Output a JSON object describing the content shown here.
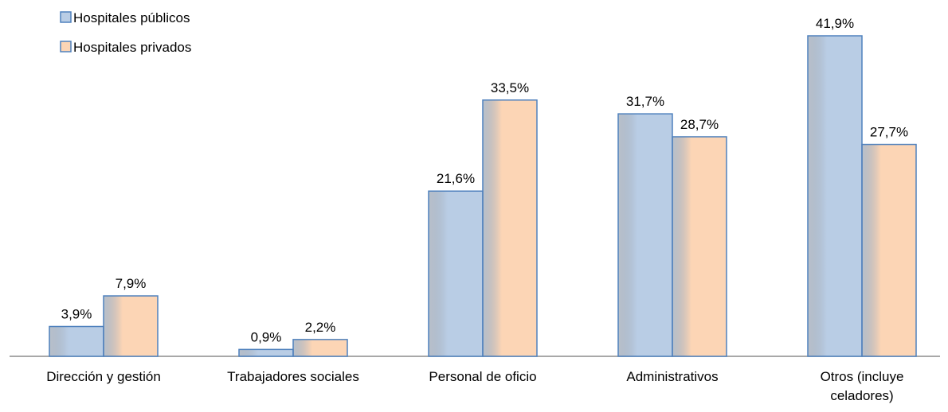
{
  "chart_data": {
    "type": "bar",
    "categories": [
      "Dirección y gestión",
      "Trabajadores sociales",
      "Personal de oficio",
      "Administrativos",
      "Otros (incluye celadores)"
    ],
    "series": [
      {
        "name": "Hospitales públicos",
        "color": "#b9cde5",
        "values": [
          3.9,
          0.9,
          21.6,
          31.7,
          41.9
        ],
        "value_labels": [
          "3,9%",
          "0,9%",
          "21,6%",
          "31,7%",
          "41,9%"
        ]
      },
      {
        "name": "Hospitales privados",
        "color": "#fcd5b5",
        "values": [
          7.9,
          2.2,
          33.5,
          28.7,
          27.7
        ],
        "value_labels": [
          "7,9%",
          "2,2%",
          "33,5%",
          "28,7%",
          "27,7%"
        ]
      }
    ],
    "legend": "top-left"
  }
}
